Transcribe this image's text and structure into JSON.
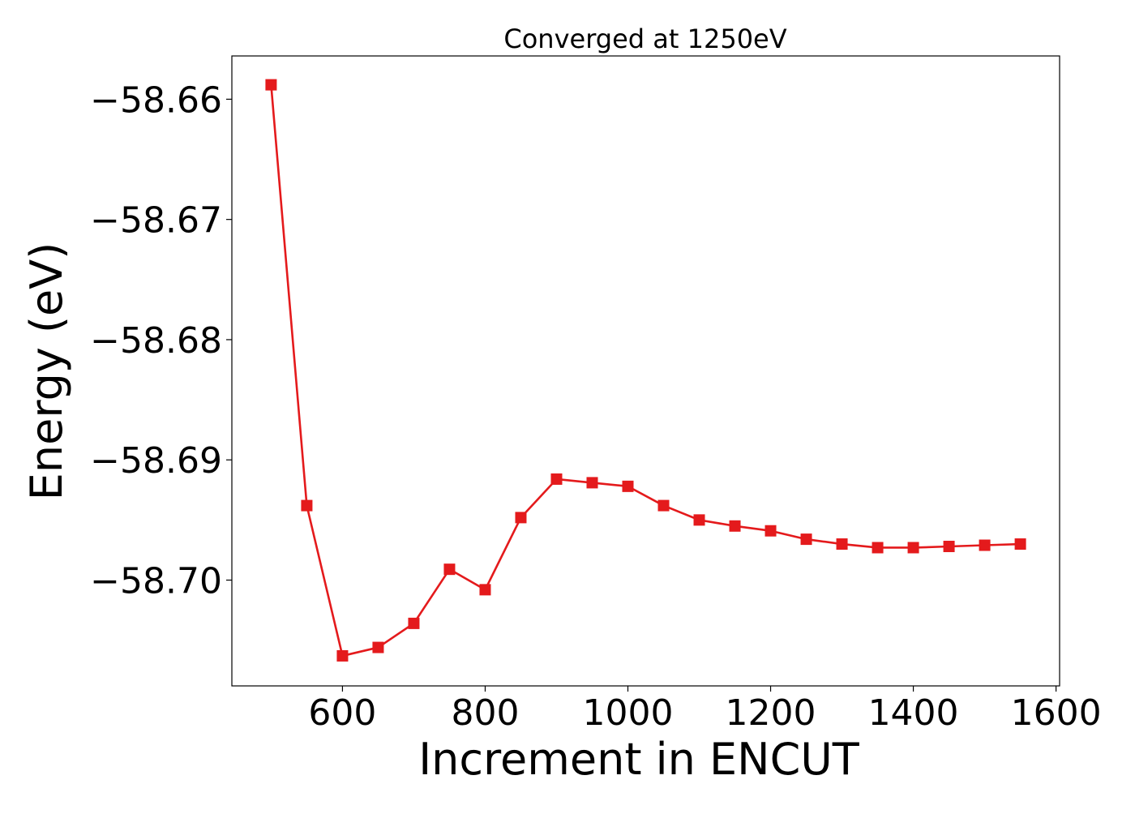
{
  "chart_data": {
    "type": "line",
    "title": "Converged at 1250eV",
    "xlabel": "Increment in ENCUT",
    "ylabel": "Energy (eV)",
    "xlim": [
      445,
      1605
    ],
    "ylim": [
      -58.7088,
      -58.6564
    ],
    "x_ticks": [
      600,
      800,
      1000,
      1200,
      1400,
      1600
    ],
    "x_tick_labels": [
      "600",
      "800",
      "1000",
      "1200",
      "1400",
      "1600"
    ],
    "y_ticks": [
      -58.66,
      -58.67,
      -58.68,
      -58.69,
      -58.7
    ],
    "y_tick_labels": [
      "−58.66",
      "−58.67",
      "−58.68",
      "−58.69",
      "−58.70"
    ],
    "grid": false,
    "series": [
      {
        "color": "#e41a1c",
        "marker": "square",
        "x": [
          500,
          550,
          600,
          650,
          700,
          750,
          800,
          850,
          900,
          950,
          1000,
          1050,
          1100,
          1150,
          1200,
          1250,
          1300,
          1350,
          1400,
          1450,
          1500,
          1550
        ],
        "y": [
          -58.6588,
          -58.6938,
          -58.7063,
          -58.7056,
          -58.7036,
          -58.6991,
          -58.7008,
          -58.6948,
          -58.6916,
          -58.6919,
          -58.6922,
          -58.6938,
          -58.695,
          -58.6955,
          -58.6959,
          -58.6966,
          -58.697,
          -58.6973,
          -58.6973,
          -58.6972,
          -58.6971,
          -58.697
        ]
      }
    ]
  }
}
